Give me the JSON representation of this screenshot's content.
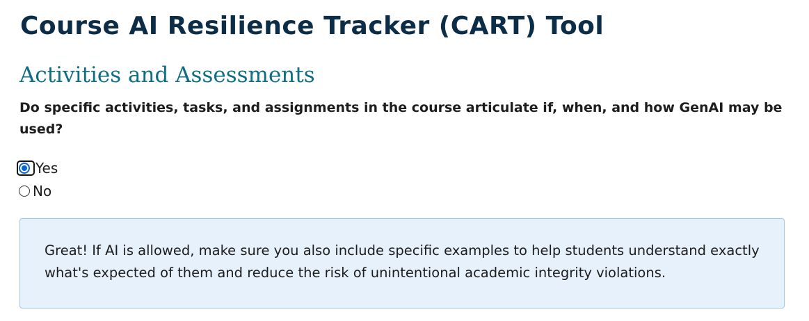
{
  "header": {
    "app_title": "Course AI Resilience Tracker (CART) Tool"
  },
  "section": {
    "title": "Activities and Assessments",
    "question": "Do specific activities, tasks, and assignments in the course articulate if, when, and how GenAI may be used?"
  },
  "options": {
    "yes": {
      "label": "Yes",
      "selected": true
    },
    "no": {
      "label": "No",
      "selected": false
    }
  },
  "feedback": {
    "message": "Great! If AI is allowed, make sure you also include specific examples to help students understand exactly what's expected of them and reduce the risk of unintentional academic integrity violations."
  },
  "colors": {
    "title": "#0c2d48",
    "section_title": "#0f6e82",
    "radio_accent": "#0a63d6",
    "alert_bg": "#e7f1fb",
    "alert_border": "#9fc6e6"
  }
}
